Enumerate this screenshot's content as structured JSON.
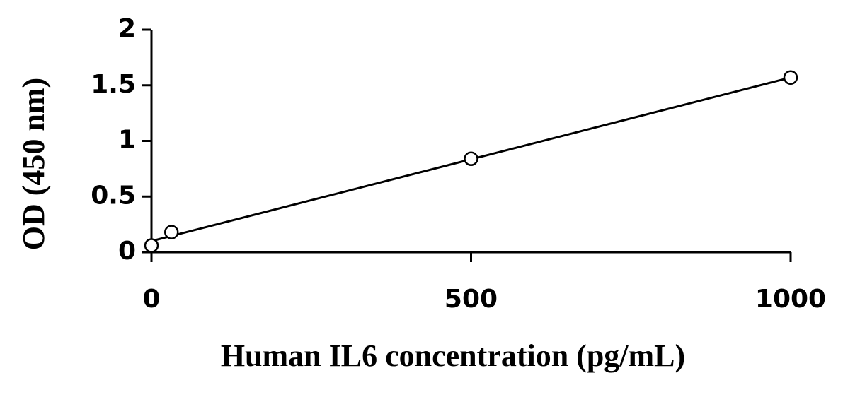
{
  "chart_data": {
    "type": "scatter",
    "x_label": "Human IL6 concentration (pg/mL)",
    "y_label": "OD (450 nm)",
    "x": [
      0,
      31.25,
      500,
      1000
    ],
    "values": [
      0.06,
      0.18,
      0.84,
      1.57
    ],
    "trendline": {
      "x": [
        0,
        1000
      ],
      "values": [
        0.1,
        1.57
      ]
    },
    "color": "#000000",
    "xlim": [
      0,
      1000
    ],
    "xticks": [
      0,
      500,
      1000
    ],
    "ylim": [
      0,
      2
    ],
    "yticks": [
      0,
      0.5,
      1,
      1.5,
      2
    ]
  }
}
